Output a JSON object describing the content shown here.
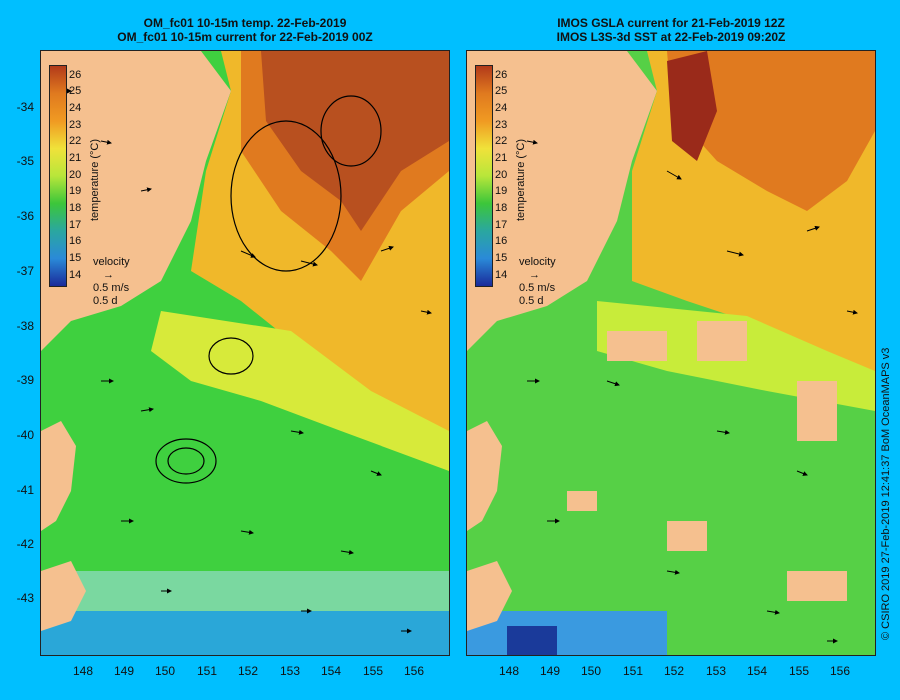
{
  "left": {
    "title_line1": "OM_fc01 10-15m temp. 22-Feb-2019",
    "title_line2": "OM_fc01 10-15m current for 22-Feb-2019 00Z"
  },
  "right": {
    "title_line1": "IMOS GSLA current for 21-Feb-2019 12Z",
    "title_line2": "IMOS L3S-3d SST at 22-Feb-2019 09:20Z"
  },
  "axes": {
    "lat_ticks": [
      "-34",
      "-35",
      "-36",
      "-37",
      "-38",
      "-39",
      "-40",
      "-41",
      "-42",
      "-43"
    ],
    "lon_ticks": [
      "148",
      "149",
      "150",
      "151",
      "152",
      "153",
      "154",
      "155",
      "156"
    ]
  },
  "colorbar": {
    "title": "temperature (°C)",
    "labels": [
      "26",
      "25",
      "24",
      "23",
      "22",
      "21",
      "20",
      "19",
      "18",
      "17",
      "16",
      "15",
      "14"
    ],
    "colors": [
      "#b23a1a",
      "#c9561f",
      "#e07a1f",
      "#f09a22",
      "#f7b92b",
      "#f0e23a",
      "#b8e63a",
      "#6fd93a",
      "#3cc63a",
      "#2aa7a0",
      "#2a8ad8",
      "#2a5fd0",
      "#1a2a9a"
    ]
  },
  "velocity": {
    "label": "velocity",
    "speed": "0.5 m/s",
    "time": "0.5 d"
  },
  "credit": "© CSIRO 2019   27-Feb-2019 12:41:37 BoM OceanMAPS v3"
}
